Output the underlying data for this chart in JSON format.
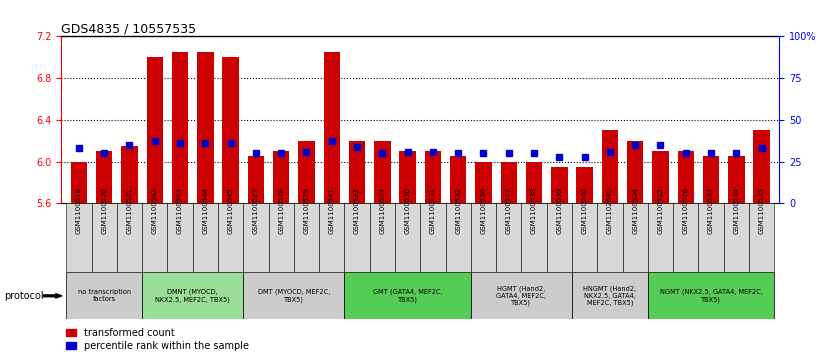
{
  "title": "GDS4835 / 10557535",
  "samples": [
    "GSM1100519",
    "GSM1100520",
    "GSM1100521",
    "GSM1100542",
    "GSM1100543",
    "GSM1100544",
    "GSM1100545",
    "GSM1100527",
    "GSM1100528",
    "GSM1100529",
    "GSM1100541",
    "GSM1100522",
    "GSM1100523",
    "GSM1100530",
    "GSM1100531",
    "GSM1100532",
    "GSM1100536",
    "GSM1100537",
    "GSM1100538",
    "GSM1100539",
    "GSM1100540",
    "GSM1102649",
    "GSM1100524",
    "GSM1100525",
    "GSM1100526",
    "GSM1100533",
    "GSM1100534",
    "GSM1100535"
  ],
  "bar_values": [
    6.0,
    6.1,
    6.15,
    7.0,
    7.05,
    7.05,
    7.0,
    6.05,
    6.1,
    6.2,
    7.05,
    6.2,
    6.2,
    6.1,
    6.1,
    6.05,
    6.0,
    6.0,
    6.0,
    5.95,
    5.95,
    6.3,
    6.2,
    6.1,
    6.1,
    6.05,
    6.05,
    6.3
  ],
  "percentile_values": [
    33,
    30,
    35,
    37,
    36,
    36,
    36,
    30,
    30,
    31,
    37,
    34,
    30,
    31,
    31,
    30,
    30,
    30,
    30,
    28,
    28,
    31,
    35,
    35,
    30,
    30,
    30,
    33
  ],
  "ylim_left": [
    5.6,
    7.2
  ],
  "ylim_right": [
    0,
    100
  ],
  "yticks_left": [
    5.6,
    6.0,
    6.4,
    6.8,
    7.2
  ],
  "yticks_right": [
    0,
    25,
    50,
    75,
    100
  ],
  "ytick_labels_right": [
    "0",
    "25",
    "50",
    "75",
    "100%"
  ],
  "bar_color": "#cc0000",
  "percentile_color": "#0000cc",
  "bg_color": "#ffffff",
  "protocol_groups": [
    {
      "label": "no transcription\nfactors",
      "start": 0,
      "end": 3,
      "color": "#cccccc"
    },
    {
      "label": "DMNT (MYOCD,\nNKX2.5, MEF2C, TBX5)",
      "start": 3,
      "end": 7,
      "color": "#99dd99"
    },
    {
      "label": "DMT (MYOCD, MEF2C,\nTBX5)",
      "start": 7,
      "end": 11,
      "color": "#cccccc"
    },
    {
      "label": "GMT (GATA4, MEF2C,\nTBX5)",
      "start": 11,
      "end": 16,
      "color": "#55cc55"
    },
    {
      "label": "HGMT (Hand2,\nGATA4, MEF2C,\nTBX5)",
      "start": 16,
      "end": 20,
      "color": "#cccccc"
    },
    {
      "label": "HNGMT (Hand2,\nNKX2.5, GATA4,\nMEF2C, TBX5)",
      "start": 20,
      "end": 23,
      "color": "#cccccc"
    },
    {
      "label": "NGMT (NKX2.5, GATA4, MEF2C,\nTBX5)",
      "start": 23,
      "end": 28,
      "color": "#55cc55"
    }
  ]
}
